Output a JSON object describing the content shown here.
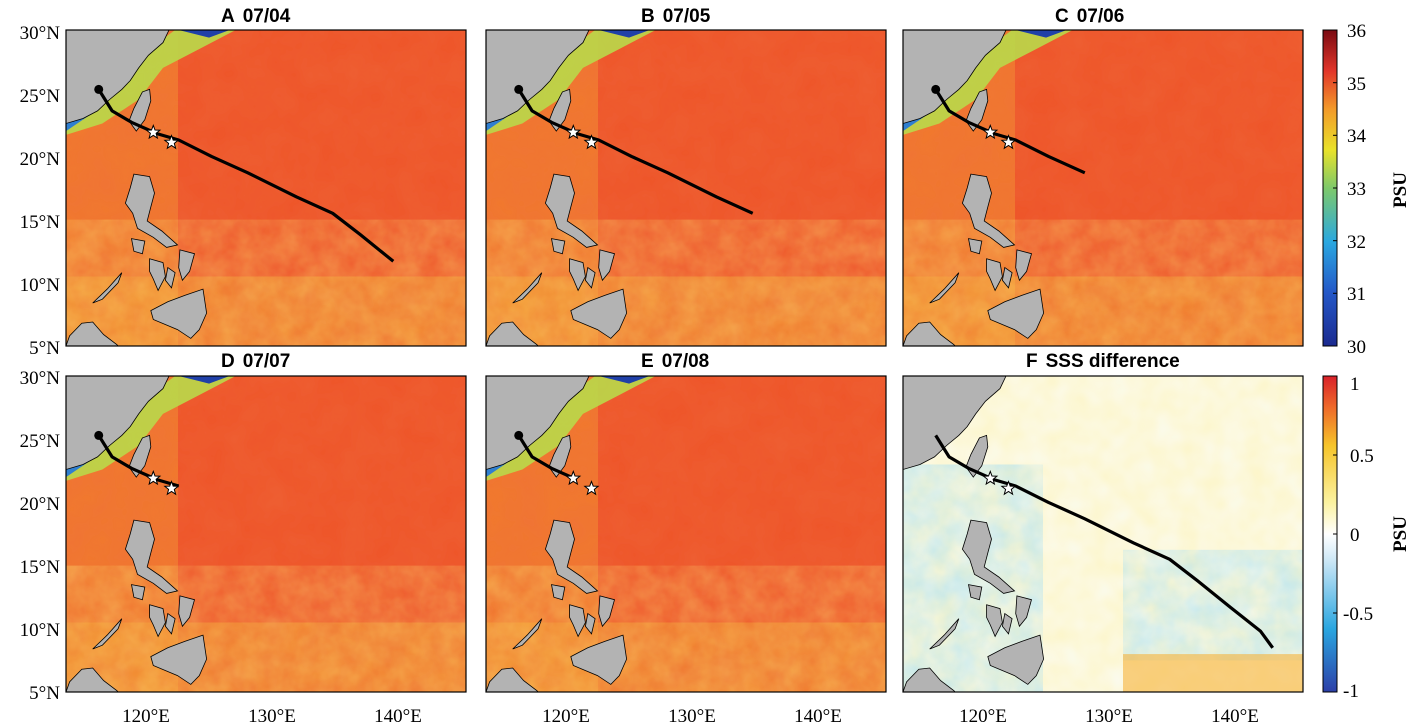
{
  "figure": {
    "panels": [
      {
        "letter": "A",
        "date": "07/04"
      },
      {
        "letter": "B",
        "date": "07/05"
      },
      {
        "letter": "C",
        "date": "07/06"
      },
      {
        "letter": "D",
        "date": "07/07"
      },
      {
        "letter": "E",
        "date": "07/08"
      },
      {
        "letter": "F",
        "date": "SSS difference"
      }
    ],
    "y_ticks": [
      "30°N",
      "25°N",
      "20°N",
      "15°N",
      "10°N",
      "5°N"
    ],
    "x_ticks": [
      "120°E",
      "130°E",
      "140°E"
    ],
    "colorbar_sss": {
      "label": "PSU",
      "ticks": [
        "36",
        "35",
        "34",
        "33",
        "32",
        "31",
        "30"
      ]
    },
    "colorbar_diff": {
      "label": "PSU",
      "ticks": [
        "1",
        "0.5",
        "0",
        "-0.5",
        "-1"
      ]
    }
  },
  "chart_data": {
    "type": "heatmap",
    "variable": "Sea surface salinity",
    "lon_range": [
      115,
      148
    ],
    "lat_range": [
      5,
      30
    ],
    "colorbar_sss_range": [
      30,
      36
    ],
    "colorbar_diff_range": [
      -1,
      1
    ],
    "colors": {
      "land": "#b3b3b3",
      "track": "#000000",
      "star_fill": "#ffffff"
    },
    "stars": [
      {
        "lon": 122.2,
        "lat": 21.9
      },
      {
        "lon": 123.7,
        "lat": 21.1
      }
    ],
    "track": [
      {
        "lon": 145.5,
        "lat": 8.5
      },
      {
        "lon": 144.5,
        "lat": 9.8
      },
      {
        "lon": 142.0,
        "lat": 11.7
      },
      {
        "lon": 139.3,
        "lat": 13.8
      },
      {
        "lon": 137.0,
        "lat": 15.5
      },
      {
        "lon": 134.0,
        "lat": 16.8
      },
      {
        "lon": 130.0,
        "lat": 18.7
      },
      {
        "lon": 127.0,
        "lat": 20.0
      },
      {
        "lon": 124.3,
        "lat": 21.3
      },
      {
        "lon": 122.5,
        "lat": 21.8
      },
      {
        "lon": 120.4,
        "lat": 22.7
      },
      {
        "lon": 118.8,
        "lat": 23.6
      },
      {
        "lon": 117.7,
        "lat": 25.3
      }
    ],
    "panel_track_start": [
      2,
      4,
      6,
      8,
      9,
      0
    ],
    "panel_track_end": [
      12,
      12,
      12,
      12,
      12,
      13
    ]
  }
}
